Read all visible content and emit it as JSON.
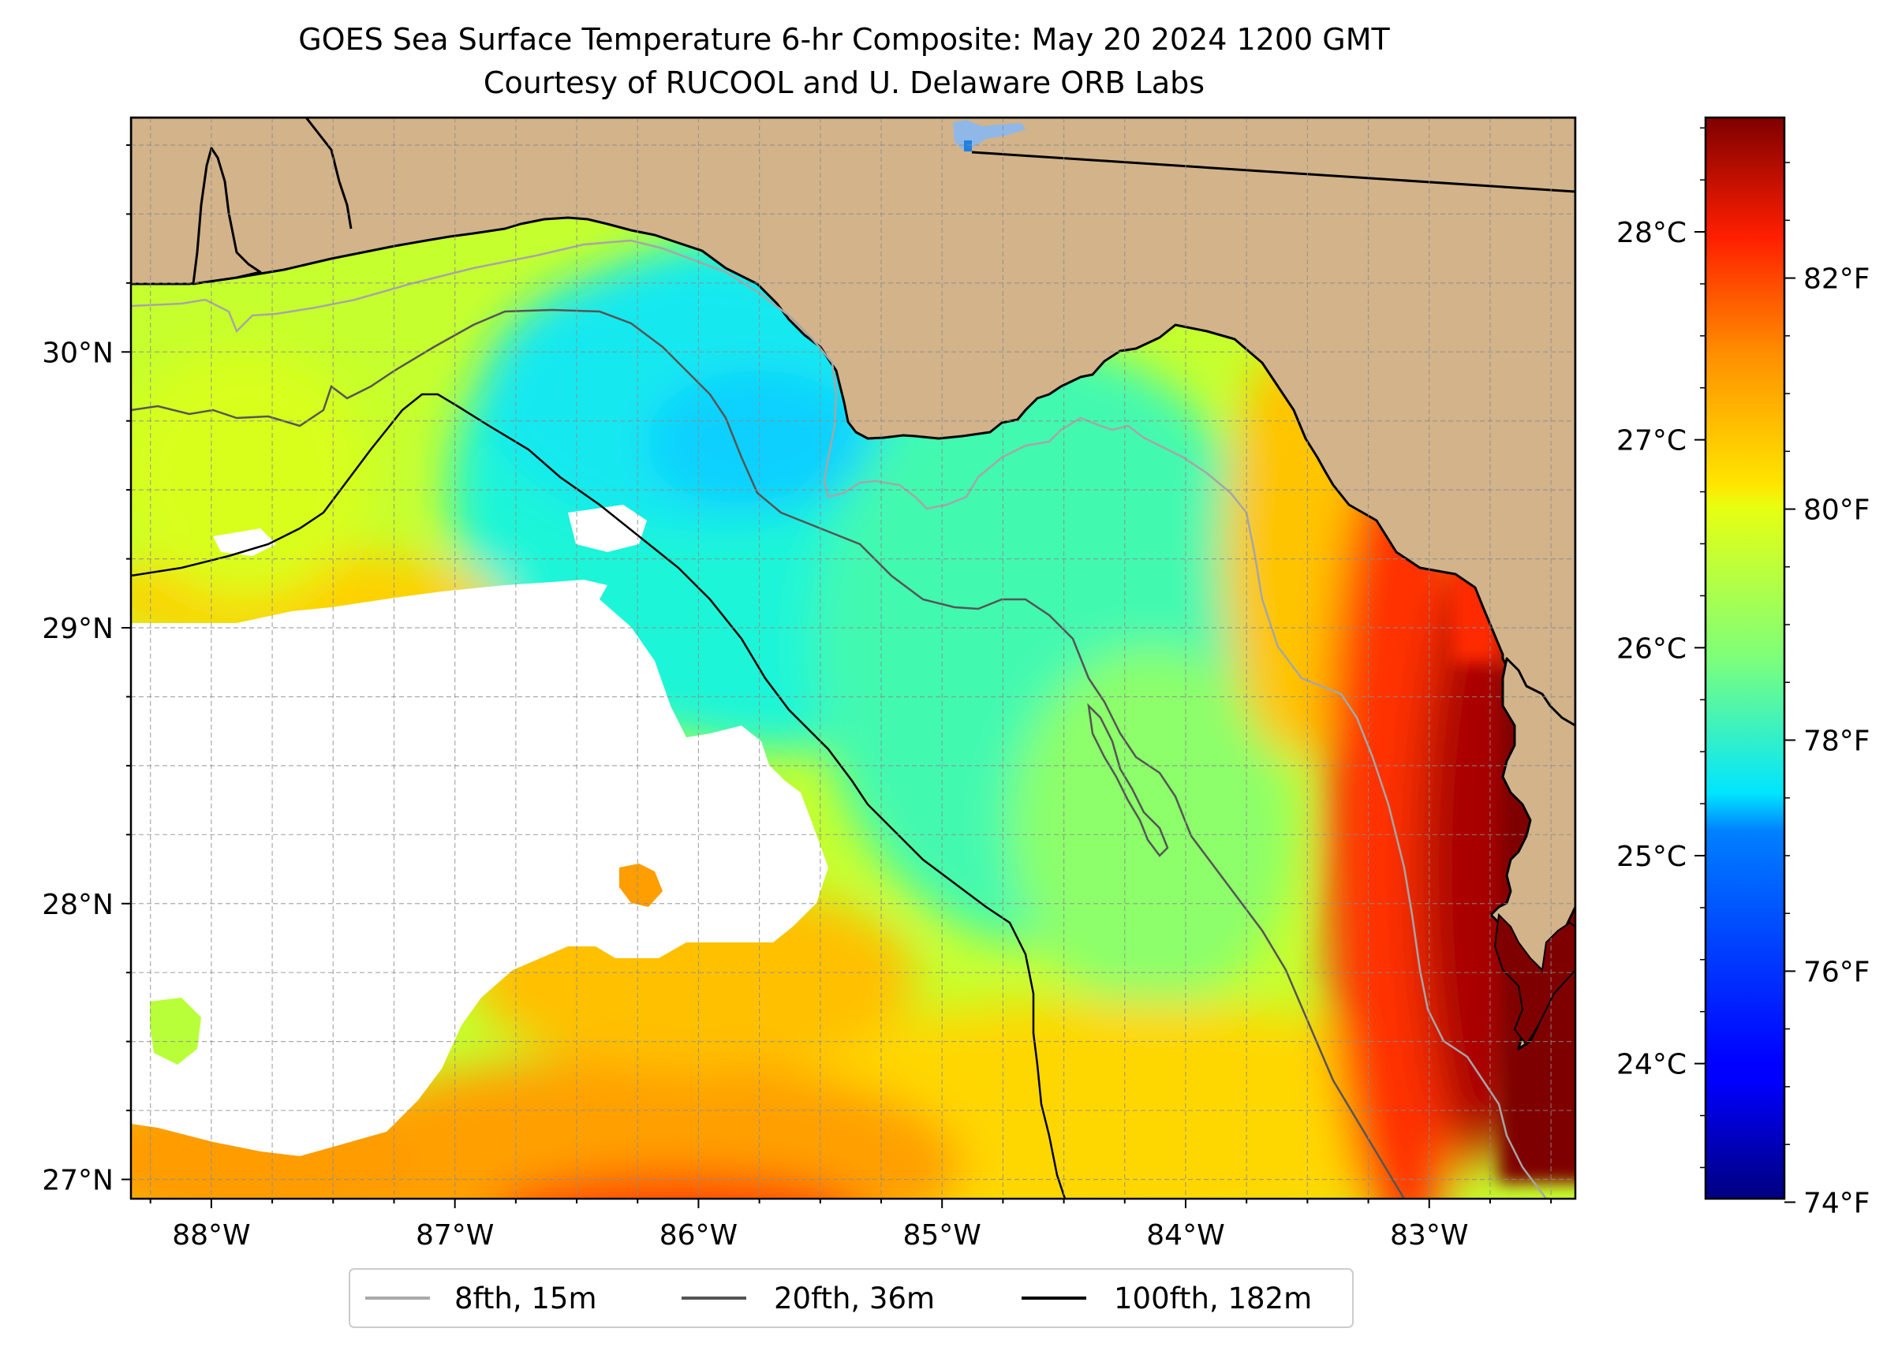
{
  "title": {
    "line1": "GOES Sea Surface Temperature 6-hr Composite: May 20 2024 1200 GMT",
    "line2": "Courtesy of RUCOOL and U. Delaware ORB Labs"
  },
  "map": {
    "lon_range": [
      -88.33,
      -82.4
    ],
    "lat_range": [
      26.93,
      30.85
    ],
    "x_ticks": [
      {
        "lon": -88,
        "label": "88°W"
      },
      {
        "lon": -87,
        "label": "87°W"
      },
      {
        "lon": -86,
        "label": "86°W"
      },
      {
        "lon": -85,
        "label": "85°W"
      },
      {
        "lon": -84,
        "label": "84°W"
      },
      {
        "lon": -83,
        "label": "83°W"
      }
    ],
    "y_ticks": [
      {
        "lat": 27,
        "label": "27°N"
      },
      {
        "lat": 28,
        "label": "28°N"
      },
      {
        "lat": 29,
        "label": "29°N"
      },
      {
        "lat": 30,
        "label": "30°N"
      }
    ],
    "grid": true,
    "land_color": "#d2b38a",
    "no_data_color": "#ffffff"
  },
  "colorbar": {
    "colormap": "jet",
    "celsius_range": [
      23.35,
      28.55
    ],
    "celsius_ticks": [
      {
        "value": 24,
        "label": "24°C"
      },
      {
        "value": 25,
        "label": "25°C"
      },
      {
        "value": 26,
        "label": "26°C"
      },
      {
        "value": 27,
        "label": "27°C"
      },
      {
        "value": 28,
        "label": "28°C"
      }
    ],
    "fahrenheit_ticks": [
      {
        "value": 74,
        "label": "74°F"
      },
      {
        "value": 76,
        "label": "76°F"
      },
      {
        "value": 78,
        "label": "78°F"
      },
      {
        "value": 80,
        "label": "80°F"
      },
      {
        "value": 82,
        "label": "82°F"
      }
    ]
  },
  "legend": {
    "placement": "bottom-center",
    "items": [
      {
        "label": "8fth, 15m",
        "color": "#aaaaaa"
      },
      {
        "label": "20fth, 36m",
        "color": "#555555"
      },
      {
        "label": "100fth, 182m",
        "color": "#000000"
      }
    ]
  }
}
